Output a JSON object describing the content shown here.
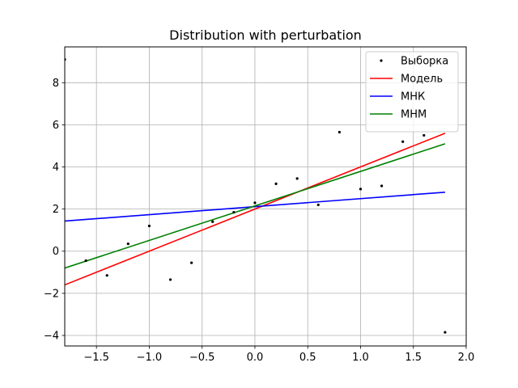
{
  "chart_data": {
    "type": "scatter",
    "title": "Distribution with perturbation",
    "xlabel": "",
    "ylabel": "",
    "xlim": [
      -1.8,
      2.0
    ],
    "ylim": [
      -4.5,
      9.7
    ],
    "xticks": [
      -1.5,
      -1.0,
      -0.5,
      0.0,
      0.5,
      1.0,
      1.5,
      2.0
    ],
    "xtick_labels": [
      "−1.5",
      "−1.0",
      "−0.5",
      "0.0",
      "0.5",
      "1.0",
      "1.5",
      "2.0"
    ],
    "yticks": [
      -4,
      -2,
      0,
      2,
      4,
      6,
      8
    ],
    "ytick_labels": [
      "−4",
      "−2",
      "0",
      "2",
      "4",
      "6",
      "8"
    ],
    "grid": true,
    "legend_position": "top-right",
    "series": [
      {
        "name": "Выборка",
        "kind": "scatter",
        "color": "#000000",
        "x": [
          -1.8,
          -1.6,
          -1.4,
          -1.2,
          -1.0,
          -0.8,
          -0.6,
          -0.4,
          -0.2,
          0.0,
          0.2,
          0.4,
          0.6,
          0.8,
          1.0,
          1.2,
          1.4,
          1.6,
          1.8
        ],
        "y": [
          9.1,
          -0.45,
          -1.15,
          0.35,
          1.2,
          -1.35,
          -0.55,
          1.4,
          1.85,
          2.3,
          3.2,
          3.45,
          2.2,
          5.65,
          2.95,
          3.1,
          5.2,
          5.5,
          -3.85
        ]
      },
      {
        "name": "Модель",
        "kind": "line",
        "color": "#ff0000",
        "x": [
          -1.8,
          1.8
        ],
        "y": [
          -1.6,
          5.6
        ]
      },
      {
        "name": "МНК",
        "kind": "line",
        "color": "#0000ff",
        "x": [
          -1.8,
          1.8
        ],
        "y": [
          1.43,
          2.8
        ]
      },
      {
        "name": "МНМ",
        "kind": "line",
        "color": "#008000",
        "x": [
          -1.8,
          1.8
        ],
        "y": [
          -0.8,
          5.1
        ]
      }
    ]
  }
}
